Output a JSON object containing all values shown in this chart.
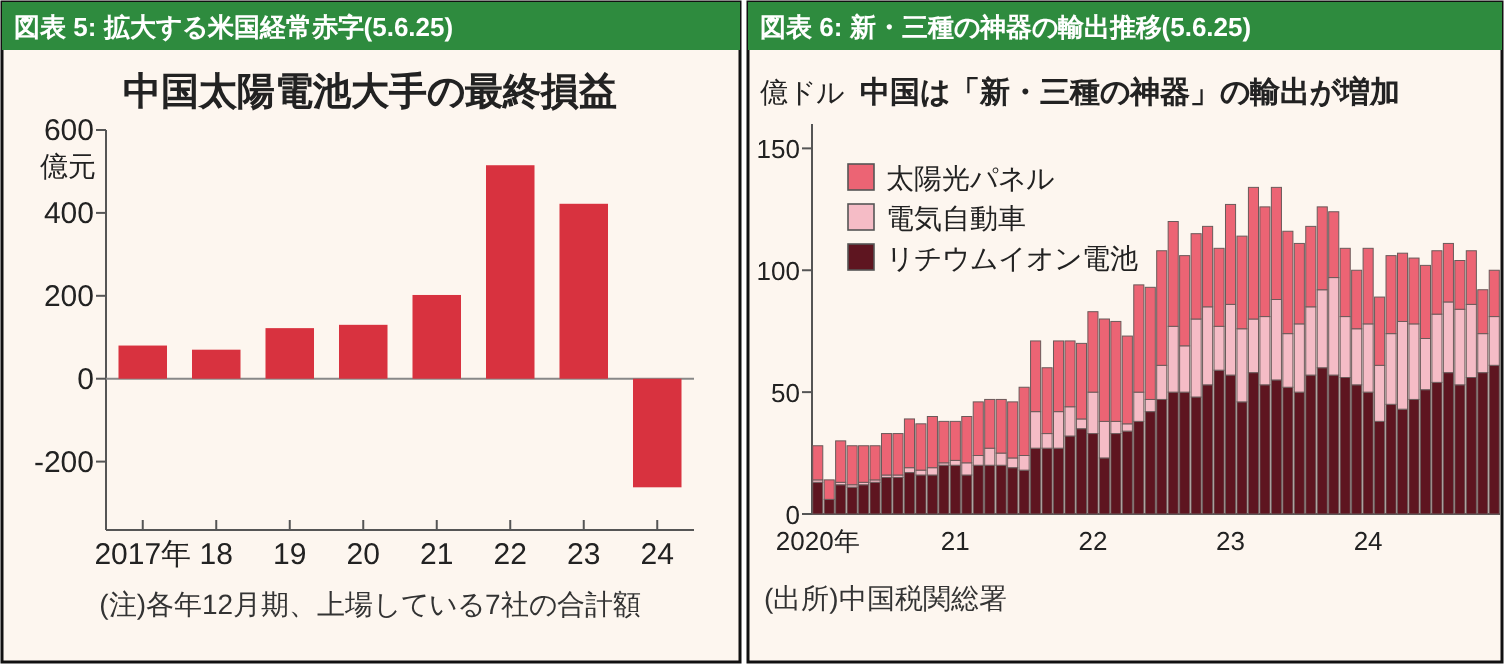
{
  "chart_data": [
    {
      "type": "bar",
      "subtitle": "図表 5: 拡大する米国経常赤字(5.6.25)",
      "title": "中国太陽電池大手の最終損益",
      "ylabel": "億元",
      "categories": [
        "2017年",
        "18",
        "19",
        "20",
        "21",
        "22",
        "23",
        "24"
      ],
      "values": [
        80,
        70,
        122,
        130,
        202,
        515,
        422,
        -262
      ],
      "color": "#d8323f",
      "ylim": [
        -365,
        600
      ],
      "yticks": [
        {
          "value": -200,
          "label": "-200"
        },
        0,
        200,
        400,
        600
      ],
      "annotations": [
        "(注)各年12月期、上場している7社の合計額"
      ]
    },
    {
      "type": "bar",
      "subtitle": "図表 6: 新・三種の神器の輸出推移(5.6.25)",
      "title": "中国は「新・三種の神器」の輸出が増加",
      "ylabel": "億ドル",
      "stacked": true,
      "legend": "top left",
      "categories": [
        "2020年",
        null,
        null,
        null,
        null,
        null,
        null,
        null,
        null,
        null,
        null,
        null,
        "21",
        null,
        null,
        null,
        null,
        null,
        null,
        null,
        null,
        null,
        null,
        null,
        "22",
        null,
        null,
        null,
        null,
        null,
        null,
        null,
        null,
        null,
        null,
        null,
        "23",
        null,
        null,
        null,
        null,
        null,
        null,
        null,
        null,
        null,
        null,
        null,
        "24",
        null,
        null,
        null,
        null,
        null,
        null,
        null,
        null,
        null,
        null,
        null
      ],
      "ylim": [
        0,
        160
      ],
      "yticks": [
        0,
        50,
        100,
        150
      ],
      "annotations": [
        "(出所)中国税関総署"
      ],
      "series": [
        {
          "name": "リチウムイオン電池",
          "color": "#5e1520",
          "values": [
            13,
            6,
            12,
            11,
            12,
            13,
            15,
            15,
            17,
            16,
            16,
            20,
            20,
            16,
            20,
            20,
            20,
            19,
            18,
            27,
            27,
            27,
            32,
            35,
            33,
            23,
            33,
            34,
            38,
            42,
            47,
            50,
            50,
            48,
            53,
            59,
            57,
            46,
            58,
            53,
            55,
            52,
            50,
            57,
            60,
            57,
            56,
            53,
            50,
            38,
            45,
            43,
            47,
            51,
            54,
            58,
            53,
            56,
            58,
            61
          ]
        },
        {
          "name": "電気自動車",
          "color": "#f5bcc6",
          "values": [
            1,
            0,
            1,
            1,
            1,
            1,
            1,
            1,
            2,
            2,
            3,
            1,
            2,
            5,
            4,
            7,
            5,
            4,
            6,
            15,
            6,
            15,
            12,
            4,
            17,
            15,
            5,
            3,
            12,
            5,
            14,
            27,
            19,
            32,
            32,
            18,
            29,
            30,
            22,
            28,
            33,
            22,
            28,
            28,
            32,
            40,
            25,
            23,
            28,
            23,
            29,
            36,
            31,
            21,
            28,
            29,
            31,
            30,
            16,
            20
          ]
        },
        {
          "name": "太陽光パネル",
          "color": "#ec6474",
          "values": [
            14,
            8,
            17,
            16,
            15,
            14,
            17,
            17,
            20,
            19,
            21,
            17,
            16,
            19,
            22,
            20,
            22,
            23,
            28,
            29,
            27,
            29,
            27,
            31,
            33,
            42,
            41,
            36,
            44,
            46,
            47,
            43,
            37,
            35,
            33,
            32,
            41,
            38,
            54,
            45,
            46,
            42,
            33,
            33,
            34,
            27,
            28,
            24,
            31,
            28,
            32,
            28,
            27,
            30,
            26,
            24,
            20,
            22,
            18,
            19
          ]
        }
      ]
    }
  ]
}
